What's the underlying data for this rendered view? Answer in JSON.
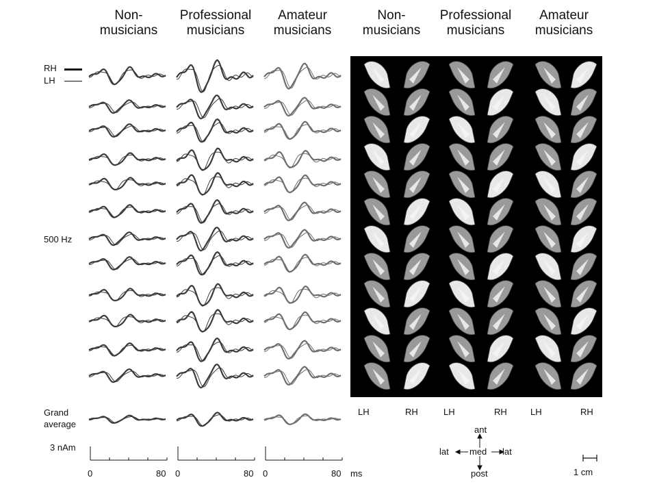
{
  "headers": [
    {
      "line1": "Non-",
      "line2": "musicians"
    },
    {
      "line1": "Professional",
      "line2": "musicians"
    },
    {
      "line1": "Amateur",
      "line2": "musicians"
    },
    {
      "line1": "Non-",
      "line2": "musicians"
    },
    {
      "line1": "Professional",
      "line2": "musicians"
    },
    {
      "line1": "Amateur",
      "line2": "musicians"
    }
  ],
  "legend": {
    "rh": "RH",
    "lh": "LH"
  },
  "frequency_label": "500 Hz",
  "grand_average": {
    "line1": "Grand",
    "line2": "average"
  },
  "scale": {
    "amplitude": "3 nAm",
    "time_ticks": [
      "0",
      "80"
    ],
    "time_unit": "ms",
    "length": "1 cm"
  },
  "hemisphere_labels": [
    "LH",
    "RH",
    "LH",
    "RH",
    "LH",
    "RH"
  ],
  "orientation": {
    "ant": "ant",
    "post": "post",
    "lat_left": "lat",
    "med": "med",
    "lat_right": "lat"
  },
  "colors": {
    "trace_dark": "#3a3a3a",
    "trace_light": "#6e6e6e",
    "panel_bg": "#000000",
    "brain_light": "#e8e8e8",
    "brain_mid": "#9a9a9a"
  }
}
